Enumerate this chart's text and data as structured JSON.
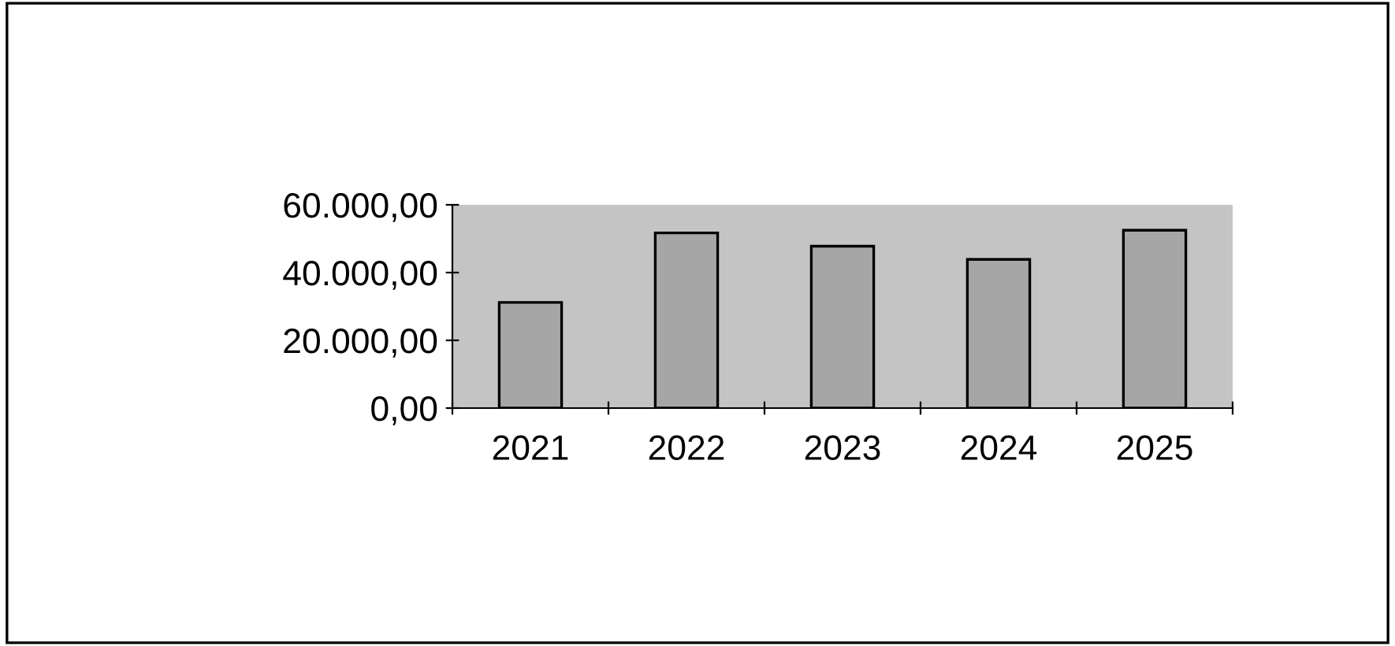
{
  "chart_data": {
    "type": "bar",
    "categories": [
      "2021",
      "2022",
      "2023",
      "2024",
      "2025"
    ],
    "values": [
      31200,
      51700,
      47800,
      43900,
      52500
    ],
    "color": "#a6a6a6",
    "ylim": [
      0,
      60000
    ],
    "yticks": [
      {
        "value": 0,
        "label": "0,00"
      },
      {
        "value": 20000,
        "label": "20.000,00"
      },
      {
        "value": 40000,
        "label": "40.000,00"
      },
      {
        "value": 60000,
        "label": "60.000,00"
      }
    ],
    "grid": false
  }
}
